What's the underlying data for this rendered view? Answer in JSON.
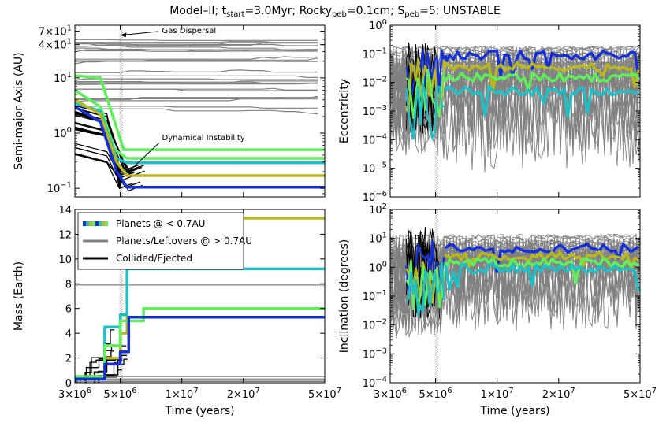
{
  "figure": {
    "title_parts": {
      "t1": "Model–II; t",
      "t1sub": "start",
      "t2": "=3.0Myr; Rocky",
      "t2sub": "peb",
      "t3": "=0.1cm; S",
      "t3sub": "peb",
      "t4": "=5; UNSTABLE"
    },
    "colors": {
      "gray": "#808080",
      "black": "#000000",
      "blue": "#1530d8",
      "cyan": "#1ec0c8",
      "yellowgreen": "#b9b81c",
      "lime": "#5ef05a"
    }
  },
  "chart_data": [
    {
      "type": "line",
      "panel": "semi-major-axis",
      "ylabel": "Semi-major Axis (AU)",
      "yscale": "log",
      "ylim": [
        0.07,
        90
      ],
      "xlim": [
        3000000,
        50000000
      ],
      "xscale": "log",
      "yticks": [
        {
          "v": 0.1,
          "m": "10",
          "e": "−1"
        },
        {
          "v": 1,
          "m": "10",
          "e": "0"
        },
        {
          "v": 10,
          "m": "10",
          "e": "1"
        },
        {
          "v": 40,
          "m": "4×10",
          "e": "1"
        },
        {
          "v": 70,
          "m": "7×10",
          "e": "1"
        }
      ],
      "annotations": [
        {
          "text": "Gas Dispersal",
          "x": 8000000,
          "y": 65,
          "target_x": 5000000,
          "target_y": 60
        },
        {
          "text": "Dynamical Instability",
          "x": 8000000,
          "y": 0.75,
          "target_x": 5300000,
          "target_y": 0.2
        }
      ],
      "series": [
        {
          "color": "black",
          "x": [
            3000000,
            4300000,
            4900000,
            5000000
          ],
          "y": [
            2.4,
            1.5,
            0.15,
            0.1
          ]
        },
        {
          "color": "black",
          "x": [
            3000000,
            4300000,
            4900000,
            5000000
          ],
          "y": [
            1.2,
            0.9,
            0.2,
            0.12
          ]
        },
        {
          "color": "lime",
          "x": [
            3000000,
            4000000,
            4600000,
            5200000,
            50000000
          ],
          "y": [
            11,
            10,
            2,
            0.5,
            0.5
          ]
        },
        {
          "color": "lime",
          "x": [
            3000000,
            4000000,
            4700000,
            5400000,
            50000000
          ],
          "y": [
            6,
            3,
            0.5,
            0.35,
            0.35
          ]
        },
        {
          "color": "cyan",
          "x": [
            3000000,
            4000000,
            4800000,
            5400000,
            50000000
          ],
          "y": [
            3.5,
            2.5,
            0.35,
            0.29,
            0.29
          ]
        },
        {
          "color": "yellowgreen",
          "x": [
            3000000,
            4000000,
            4800000,
            5400000,
            50000000
          ],
          "y": [
            4,
            2.2,
            0.3,
            0.17,
            0.17
          ]
        },
        {
          "color": "blue",
          "x": [
            3000000,
            4000000,
            4800000,
            5400000,
            50000000
          ],
          "y": [
            3,
            1.6,
            0.2,
            0.105,
            0.105
          ]
        }
      ]
    },
    {
      "type": "line",
      "panel": "eccentricity",
      "ylabel": "Eccentricity",
      "yscale": "log",
      "ylim": [
        1e-06,
        1
      ],
      "xlim": [
        3000000,
        50000000
      ],
      "xscale": "log",
      "yticks": [
        {
          "v": 1e-06,
          "m": "10",
          "e": "−6"
        },
        {
          "v": 1e-05,
          "m": "10",
          "e": "−5"
        },
        {
          "v": 0.0001,
          "m": "10",
          "e": "−4"
        },
        {
          "v": 0.001,
          "m": "10",
          "e": "−3"
        },
        {
          "v": 0.01,
          "m": "10",
          "e": "−2"
        },
        {
          "v": 0.1,
          "m": "10",
          "e": "−1"
        },
        {
          "v": 1,
          "m": "10",
          "e": "0"
        }
      ],
      "series": [
        {
          "color": "blue",
          "x": [
            5600000,
            50000000
          ],
          "y": [
            0.09,
            0.09
          ]
        },
        {
          "color": "yellowgreen",
          "x": [
            5600000,
            50000000
          ],
          "y": [
            0.035,
            0.035
          ]
        },
        {
          "color": "lime",
          "x": [
            5600000,
            50000000
          ],
          "y": [
            0.015,
            0.015
          ]
        },
        {
          "color": "cyan",
          "x": [
            5600000,
            50000000
          ],
          "y": [
            0.005,
            0.005
          ]
        }
      ]
    },
    {
      "type": "line",
      "panel": "mass",
      "ylabel": "Mass (Earth)",
      "yscale": "linear",
      "ylim": [
        0,
        14
      ],
      "xlim": [
        3000000,
        50000000
      ],
      "xscale": "log",
      "yticks": [
        {
          "v": 0,
          "m": "0",
          "e": ""
        },
        {
          "v": 2,
          "m": "2",
          "e": ""
        },
        {
          "v": 4,
          "m": "4",
          "e": ""
        },
        {
          "v": 6,
          "m": "6",
          "e": ""
        },
        {
          "v": 8,
          "m": "8",
          "e": ""
        },
        {
          "v": 10,
          "m": "10",
          "e": ""
        },
        {
          "v": 12,
          "m": "12",
          "e": ""
        },
        {
          "v": 14,
          "m": "14",
          "e": ""
        }
      ],
      "legend": {
        "placement": "upper-left",
        "entries": [
          {
            "label": "Planets @ < 0.7AU",
            "style": "multicolor"
          },
          {
            "label": "Planets/Leftovers @ > 0.7AU",
            "style": "gray"
          },
          {
            "label": "Collided/Ejected",
            "style": "black"
          }
        ]
      },
      "series": [
        {
          "color": "yellowgreen",
          "x": [
            3000000,
            4200000,
            5000000,
            5400000,
            50000000
          ],
          "y": [
            0.5,
            2,
            4,
            13.3,
            13.3
          ]
        },
        {
          "color": "cyan",
          "x": [
            3000000,
            4200000,
            5000000,
            5400000,
            50000000
          ],
          "y": [
            0.5,
            4.5,
            5.5,
            9.2,
            9.2
          ]
        },
        {
          "color": "lime",
          "x": [
            3000000,
            4200000,
            5000000,
            6500000,
            50000000
          ],
          "y": [
            0.5,
            3,
            5,
            6,
            6
          ]
        },
        {
          "color": "blue",
          "x": [
            3000000,
            4200000,
            5000000,
            5500000,
            50000000
          ],
          "y": [
            0.3,
            1.5,
            2.5,
            5.3,
            5.3
          ]
        }
      ]
    },
    {
      "type": "line",
      "panel": "inclination",
      "ylabel": "Inclination (degrees)",
      "yscale": "log",
      "ylim": [
        0.0001,
        100
      ],
      "xlim": [
        3000000,
        50000000
      ],
      "xscale": "log",
      "yticks": [
        {
          "v": 0.0001,
          "m": "10",
          "e": "−4"
        },
        {
          "v": 0.001,
          "m": "10",
          "e": "−3"
        },
        {
          "v": 0.01,
          "m": "10",
          "e": "−2"
        },
        {
          "v": 0.1,
          "m": "10",
          "e": "−1"
        },
        {
          "v": 1,
          "m": "10",
          "e": "0"
        },
        {
          "v": 10,
          "m": "10",
          "e": "1"
        },
        {
          "v": 100,
          "m": "10",
          "e": "2"
        }
      ],
      "series": [
        {
          "color": "blue",
          "x": [
            5600000,
            50000000
          ],
          "y": [
            4.5,
            4.5
          ]
        },
        {
          "color": "yellowgreen",
          "x": [
            5600000,
            50000000
          ],
          "y": [
            2.5,
            2.5
          ]
        },
        {
          "color": "lime",
          "x": [
            5600000,
            50000000
          ],
          "y": [
            1.5,
            1.5
          ]
        },
        {
          "color": "cyan",
          "x": [
            5600000,
            50000000
          ],
          "y": [
            0.9,
            0.9
          ]
        }
      ]
    }
  ],
  "x_axis": {
    "label": "Time (years)",
    "ticks": [
      {
        "v": 3000000,
        "m": "3×10",
        "e": "6"
      },
      {
        "v": 5000000,
        "m": "5×10",
        "e": "6"
      },
      {
        "v": 10000000,
        "m": "1×10",
        "e": "7"
      },
      {
        "v": 20000000,
        "m": "2×10",
        "e": "7"
      },
      {
        "v": 50000000,
        "m": "5×10",
        "e": "7"
      }
    ]
  }
}
